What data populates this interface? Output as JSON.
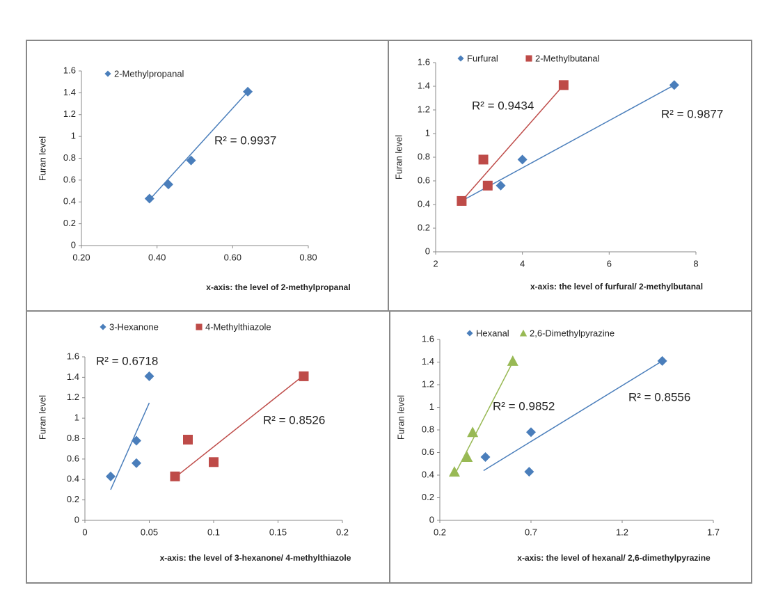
{
  "chart_data": [
    {
      "type": "scatter",
      "xlabel": "x-axis: the level of 2-methylpropanal",
      "ylabel": "Furan level",
      "xlim": [
        0.2,
        0.8
      ],
      "xticks": [
        {
          "value": 0.2,
          "label": "0.20"
        },
        {
          "value": 0.4,
          "label": "0.40"
        },
        {
          "value": 0.6,
          "label": "0.60"
        },
        {
          "value": 0.8,
          "label": "0.80"
        }
      ],
      "ylim": [
        0,
        1.6
      ],
      "yticks": [
        0,
        0.2,
        0.4,
        0.6,
        0.8,
        1,
        1.2,
        1.4,
        1.6
      ],
      "series": [
        {
          "name": "2-Methylpropanal",
          "color": "#4a7ebb",
          "marker": "diamond",
          "x": [
            0.38,
            0.43,
            0.49,
            0.64
          ],
          "values": [
            0.43,
            0.56,
            0.78,
            1.41
          ],
          "trendline": {
            "x": [
              0.38,
              0.64
            ],
            "y": [
              0.42,
              1.41
            ],
            "label": "R² = 0.9937"
          }
        }
      ]
    },
    {
      "type": "scatter",
      "xlabel": "x-axis: the level of furfural/ 2-methylbutanal",
      "ylabel": "Furan level",
      "xlim": [
        2,
        8
      ],
      "xticks": [
        2,
        4,
        6,
        8
      ],
      "ylim": [
        0,
        1.6
      ],
      "yticks": [
        0,
        0.2,
        0.4,
        0.6,
        0.8,
        1,
        1.2,
        1.4,
        1.6
      ],
      "series": [
        {
          "name": "Furfural",
          "color": "#4a7ebb",
          "marker": "diamond",
          "x": [
            2.6,
            3.5,
            4.0,
            7.5
          ],
          "values": [
            0.43,
            0.56,
            0.78,
            1.41
          ],
          "trendline": {
            "x": [
              2.6,
              7.5
            ],
            "y": [
              0.43,
              1.41
            ],
            "label": "R² = 0.9877"
          }
        },
        {
          "name": "2-Methylbutanal",
          "color": "#be4b48",
          "marker": "square",
          "x": [
            2.6,
            3.1,
            3.2,
            4.95
          ],
          "values": [
            0.43,
            0.78,
            0.56,
            1.41
          ],
          "trendline": {
            "x": [
              2.6,
              4.95
            ],
            "y": [
              0.43,
              1.41
            ],
            "label": "R² = 0.9434"
          }
        }
      ]
    },
    {
      "type": "scatter",
      "xlabel": "x-axis: the level of 3-hexanone/ 4-methylthiazole",
      "ylabel": "Furan level",
      "xlim": [
        0,
        0.2
      ],
      "xticks": [
        0,
        0.05,
        0.1,
        0.15,
        0.2
      ],
      "ylim": [
        0,
        1.6
      ],
      "yticks": [
        0,
        0.2,
        0.4,
        0.6,
        0.8,
        1,
        1.2,
        1.4,
        1.6
      ],
      "series": [
        {
          "name": "3-Hexanone",
          "color": "#4a7ebb",
          "marker": "diamond",
          "x": [
            0.02,
            0.04,
            0.04,
            0.05
          ],
          "values": [
            0.43,
            0.56,
            0.78,
            1.41
          ],
          "trendline": {
            "x": [
              0.02,
              0.05
            ],
            "y": [
              0.3,
              1.15
            ],
            "label": "R² = 0.6718"
          }
        },
        {
          "name": "4-Methylthiazole",
          "color": "#be4b48",
          "marker": "square",
          "x": [
            0.07,
            0.08,
            0.1,
            0.17
          ],
          "values": [
            0.43,
            0.79,
            0.57,
            1.41
          ],
          "trendline": {
            "x": [
              0.07,
              0.17
            ],
            "y": [
              0.42,
              1.42
            ],
            "label": "R² = 0.8526"
          }
        }
      ]
    },
    {
      "type": "scatter",
      "xlabel": "x-axis: the level of hexanal/ 2,6-dimethylpyrazine",
      "ylabel": "Furan level",
      "xlim": [
        0.2,
        1.7
      ],
      "xticks": [
        0.2,
        0.7,
        1.2,
        1.7
      ],
      "ylim": [
        0,
        1.6
      ],
      "yticks": [
        0,
        0.2,
        0.4,
        0.6,
        0.8,
        1,
        1.2,
        1.4,
        1.6
      ],
      "series": [
        {
          "name": "Hexanal",
          "color": "#4a7ebb",
          "marker": "diamond",
          "x": [
            0.45,
            0.69,
            0.7,
            1.42
          ],
          "values": [
            0.56,
            0.43,
            0.78,
            1.41
          ],
          "trendline": {
            "x": [
              0.44,
              1.42
            ],
            "y": [
              0.44,
              1.41
            ],
            "label": "R² = 0.8556"
          }
        },
        {
          "name": "2,6-Dimethylpyrazine",
          "color": "#98b954",
          "marker": "triangle",
          "x": [
            0.28,
            0.35,
            0.38,
            0.6
          ],
          "values": [
            0.43,
            0.56,
            0.78,
            1.41
          ],
          "trendline": {
            "x": [
              0.28,
              0.6
            ],
            "y": [
              0.4,
              1.4
            ],
            "label": "R² = 0.9852"
          }
        }
      ]
    }
  ]
}
